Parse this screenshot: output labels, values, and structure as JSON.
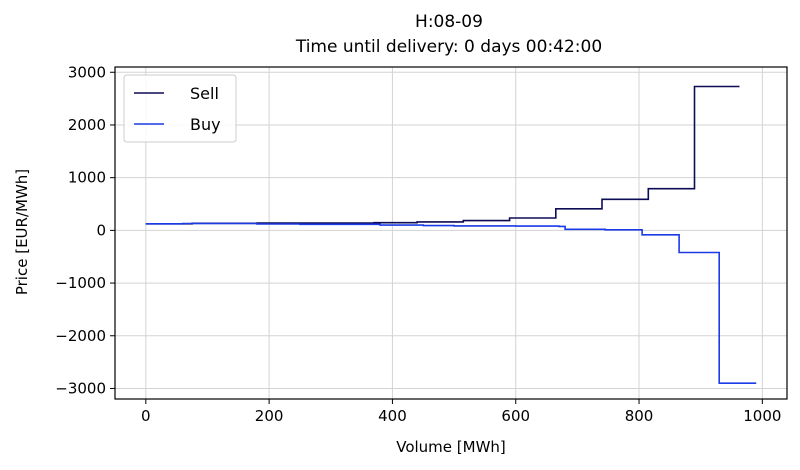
{
  "chart_data": {
    "type": "line",
    "line_shape": "step",
    "title": "H:08-09",
    "subtitle": "Time until delivery: 0 days 00:42:00",
    "xlabel": "Volume [MWh]",
    "ylabel": "Price [EUR/MWh]",
    "xlim": [
      -50,
      1040
    ],
    "ylim": [
      -3200,
      3100
    ],
    "xticks": [
      0,
      200,
      400,
      600,
      800,
      1000
    ],
    "xtick_labels": [
      "0",
      "200",
      "400",
      "600",
      "800",
      "1000"
    ],
    "yticks": [
      -3000,
      -2000,
      -1000,
      0,
      1000,
      2000,
      3000
    ],
    "ytick_labels": [
      "−3000",
      "−2000",
      "−1000",
      "0",
      "1000",
      "2000",
      "3000"
    ],
    "grid": true,
    "legend_position": "top-left",
    "series": [
      {
        "name": "Sell",
        "color": "#0d0d55",
        "x": [
          0,
          75,
          180,
          370,
          440,
          515,
          590,
          665,
          740,
          815,
          890,
          963
        ],
        "y": [
          125,
          135,
          140,
          145,
          160,
          185,
          235,
          410,
          590,
          790,
          2730,
          2730
        ]
      },
      {
        "name": "Buy",
        "color": "#1a3be6",
        "x": [
          0,
          60,
          180,
          250,
          380,
          450,
          500,
          600,
          670,
          680,
          745,
          805,
          865,
          930,
          990
        ],
        "y": [
          125,
          130,
          120,
          115,
          100,
          90,
          85,
          80,
          75,
          20,
          10,
          -85,
          -420,
          -2900,
          -2900
        ]
      }
    ]
  }
}
